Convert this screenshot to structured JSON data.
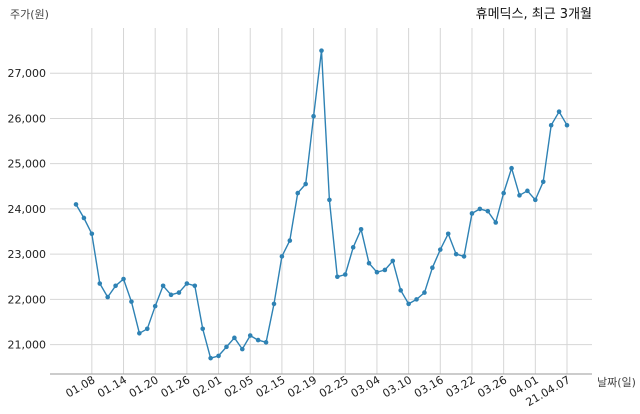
{
  "chart_data": {
    "type": "line",
    "title": "휴메딕스, 최근 3개월",
    "ylabel": "주가(원)",
    "xlabel": "날짜(일)",
    "ylim": [
      20350,
      28000
    ],
    "yticks": [
      21000,
      22000,
      23000,
      24000,
      25000,
      26000,
      27000
    ],
    "ytick_labels": [
      "21,000",
      "22,000",
      "23,000",
      "24,000",
      "25,000",
      "26,000",
      "27,000"
    ],
    "xtick_labels": [
      "01.08",
      "01.14",
      "01.20",
      "01.26",
      "02.01",
      "02.05",
      "02.15",
      "02.19",
      "02.25",
      "03.04",
      "03.10",
      "03.16",
      "03.22",
      "03.26",
      "04.01",
      "21.04.07"
    ],
    "xtick_index": [
      2,
      6,
      10,
      14,
      18,
      22,
      26,
      30,
      34,
      38,
      42,
      46,
      50,
      54,
      58,
      62
    ],
    "color": "#2e82b4",
    "grid": true,
    "series": [
      {
        "values": [
          24100,
          23800,
          23450,
          22350,
          22050,
          22300,
          22450,
          21950,
          21250,
          21350,
          21850,
          22300,
          22100,
          22150,
          22350,
          22300,
          21350,
          20700,
          20750,
          20950,
          21150,
          20900,
          21200,
          21100,
          21050,
          21900,
          22950,
          23300,
          24350,
          24550,
          26050,
          27500,
          24200,
          22500,
          22550,
          23150,
          23550,
          22800,
          22600,
          22650,
          22850,
          22200,
          21900,
          22000,
          22150,
          22700,
          23100,
          23450,
          23000,
          22950,
          23900,
          24000,
          23950,
          23700,
          24350,
          24900,
          24300,
          24400,
          24200,
          24600,
          25850,
          26150,
          25850
        ]
      }
    ]
  }
}
